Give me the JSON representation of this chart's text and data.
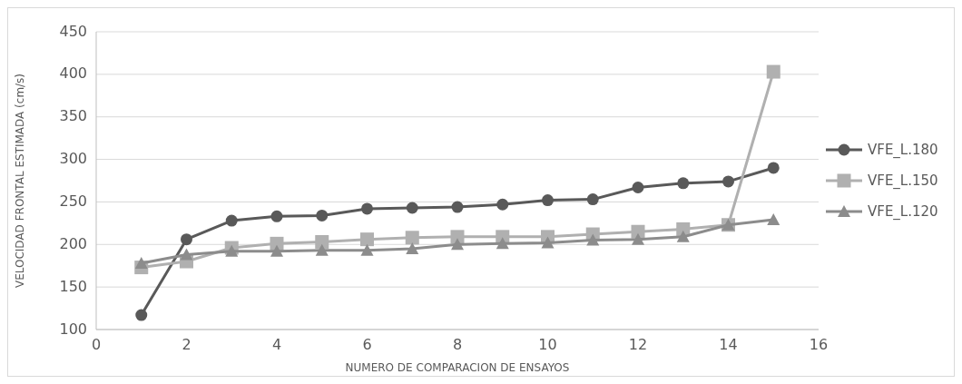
{
  "chart_data": {
    "type": "line",
    "xlabel": "NUMERO DE COMPARACION DE ENSAYOS",
    "ylabel": "VELOCIDAD FRONTAL ESTIMADA (cm/s)",
    "x": [
      1,
      2,
      3,
      4,
      5,
      6,
      7,
      8,
      9,
      10,
      11,
      12,
      13,
      14,
      15
    ],
    "xlim": [
      0,
      16
    ],
    "xticks": [
      0,
      2,
      4,
      6,
      8,
      10,
      12,
      14,
      16
    ],
    "ylim": [
      100,
      450
    ],
    "yticks": [
      100,
      150,
      200,
      250,
      300,
      350,
      400,
      450
    ],
    "grid": "y",
    "legend": "right",
    "series": [
      {
        "name": "VFE_L.180",
        "color": "#595959",
        "marker": "circle",
        "values": [
          117,
          206,
          228,
          233,
          234,
          242,
          243,
          244,
          247,
          252,
          253,
          267,
          272,
          274,
          290
        ]
      },
      {
        "name": "VFE_L.150",
        "color": "#b0b0b0",
        "marker": "square",
        "values": [
          173,
          180,
          196,
          201,
          203,
          206,
          208,
          209,
          209,
          209,
          212,
          215,
          218,
          223,
          403
        ]
      },
      {
        "name": "VFE_L.120",
        "color": "#8c8c8c",
        "marker": "triangle",
        "values": [
          178,
          188,
          192,
          192,
          193,
          193,
          195,
          200,
          201,
          202,
          205,
          206,
          209,
          223,
          229
        ]
      }
    ]
  }
}
